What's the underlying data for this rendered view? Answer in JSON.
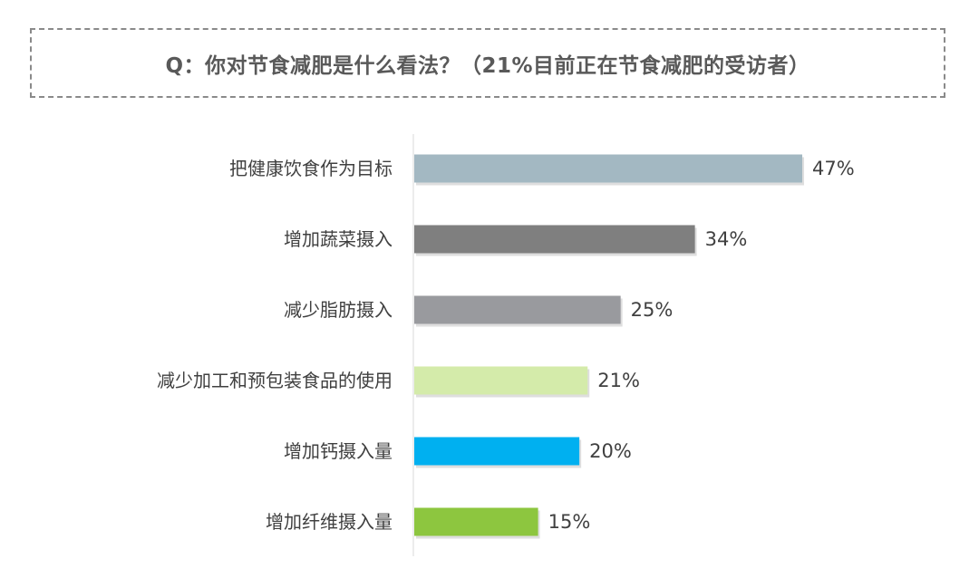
{
  "chart_data": {
    "type": "bar",
    "orientation": "horizontal",
    "title": "Q：你对节食减肥是什么看法？（21%目前正在节食减肥的受访者）",
    "categories": [
      "把健康饮食作为目标",
      "增加蔬菜摄入",
      "减少脂肪摄入",
      "减少加工和预包装食品的使用",
      "增加钙摄入量",
      "增加纤维摄入量"
    ],
    "values": [
      47,
      34,
      25,
      21,
      20,
      15
    ],
    "value_labels": [
      "47%",
      "34%",
      "25%",
      "21%",
      "20%",
      "15%"
    ],
    "colors": [
      "#a3b8c2",
      "#7f7f7f",
      "#999a9e",
      "#d4ebaa",
      "#00b0f0",
      "#8dc63f"
    ],
    "xlim": [
      0,
      47
    ],
    "grid": false,
    "legend": "none"
  }
}
